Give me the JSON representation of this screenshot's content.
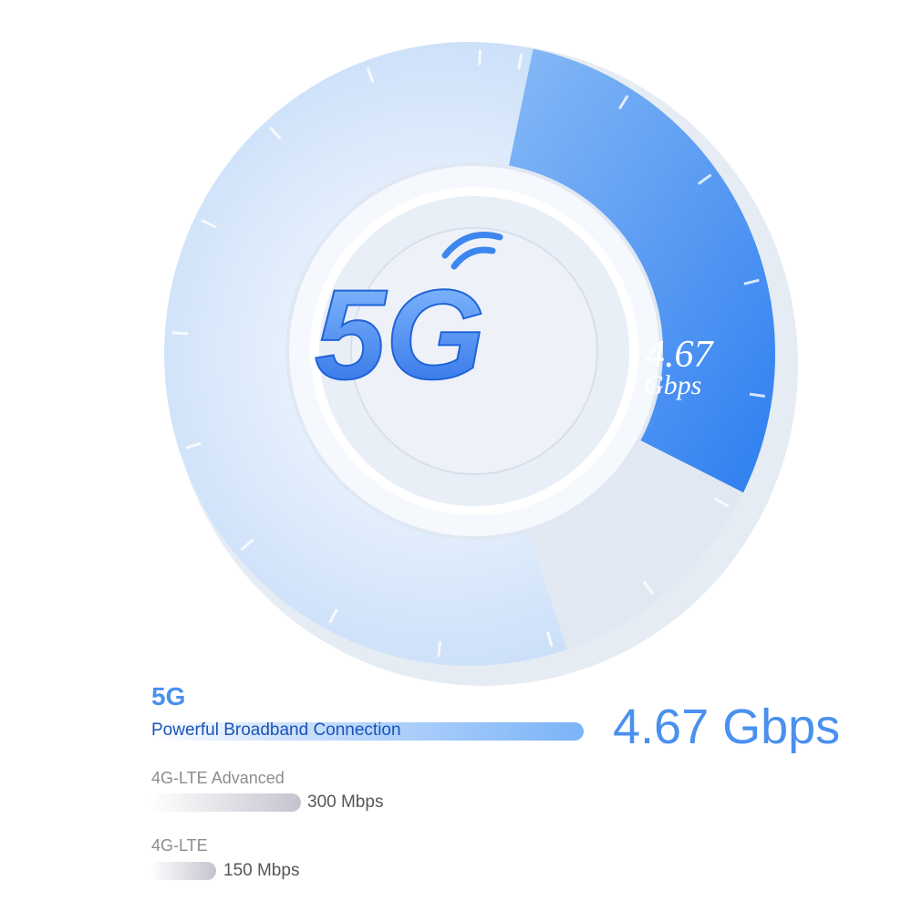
{
  "dial": {
    "badge": "5G",
    "speed_value": "4.67",
    "speed_unit": "Gbps",
    "fill_fraction": 0.29
  },
  "colors": {
    "accent": "#3f8cf0",
    "label_blue": "#1a54b8",
    "gray_text": "#8c8c92",
    "dark_text": "#55555c"
  },
  "comparison": [
    {
      "name": "5G",
      "subtitle": "Powerful Broadband Connection",
      "speed": "4.67 Gbps",
      "mbps": 4670
    },
    {
      "name": "4G-LTE Advanced",
      "speed": "300 Mbps",
      "mbps": 300
    },
    {
      "name": "4G-LTE",
      "speed": "150 Mbps",
      "mbps": 150
    }
  ]
}
